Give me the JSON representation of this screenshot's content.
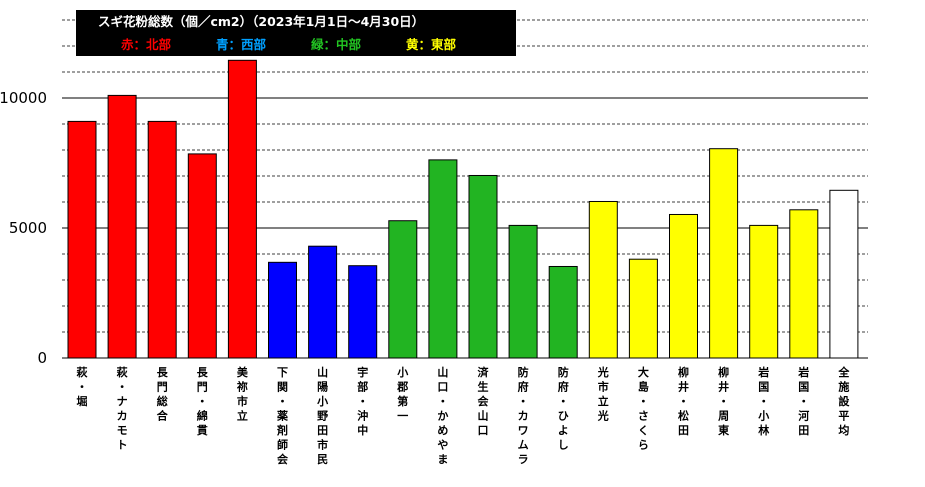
{
  "chart_data": {
    "type": "bar",
    "title": "スギ花粉総数（個／cm2）（2023年1月1日～4月30日）",
    "legend": [
      {
        "label": "赤：北部",
        "color": "#ff0000"
      },
      {
        "label": "青：西部",
        "color": "#00a0ff"
      },
      {
        "label": "緑：中部",
        "color": "#22c422"
      },
      {
        "label": "黄：東部",
        "color": "#ffff00"
      }
    ],
    "categories": [
      "萩・堀",
      "萩・ナカモト",
      "長門総合",
      "長門・綿貫",
      "美祢市立",
      "下関・薬剤師会",
      "山陽小野田市民",
      "宇部・沖中",
      "小郡第一",
      "山口・かめやま",
      "済生会山口",
      "防府・カワムラ",
      "防府・ひよし",
      "光市立光",
      "大島・さくら",
      "柳井・松田",
      "柳井・周東",
      "岩国・小林",
      "岩国・河田",
      "全施設平均"
    ],
    "values": [
      9100,
      10100,
      9100,
      7850,
      11450,
      3680,
      4300,
      3550,
      5280,
      7620,
      7020,
      5100,
      3520,
      6020,
      3800,
      5520,
      8050,
      5100,
      5700,
      6450
    ],
    "bar_colors": [
      "#ff0000",
      "#ff0000",
      "#ff0000",
      "#ff0000",
      "#ff0000",
      "#0000ff",
      "#0000ff",
      "#0000ff",
      "#22b422",
      "#22b422",
      "#22b422",
      "#22b422",
      "#22b422",
      "#ffff00",
      "#ffff00",
      "#ffff00",
      "#ffff00",
      "#ffff00",
      "#ffff00",
      "#ffffff"
    ],
    "ylim": [
      0,
      13000
    ],
    "yticks": [
      0,
      5000,
      10000
    ],
    "ytick_labels": [
      "0",
      "5000",
      "10000"
    ],
    "minor_gridlines": [
      1000,
      2000,
      3000,
      4000,
      6000,
      7000,
      8000,
      9000,
      11000,
      12000,
      13000
    ],
    "grid": true,
    "legend_position": "top-left"
  }
}
